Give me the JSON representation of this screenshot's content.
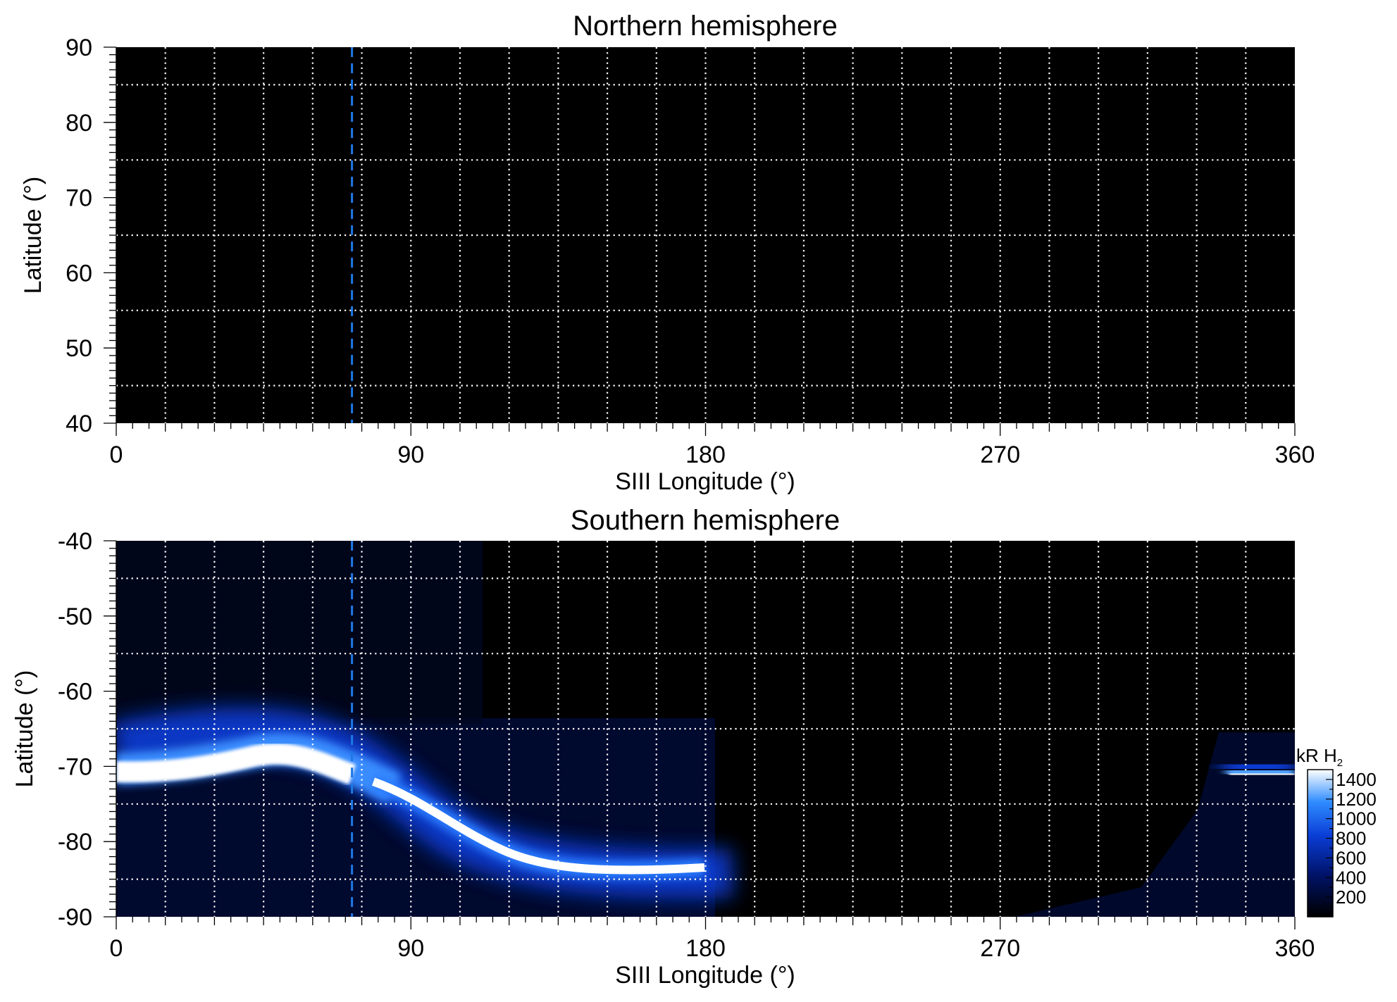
{
  "chart_data": [
    {
      "type": "heatmap",
      "title": "Northern hemisphere",
      "xlabel": "SIII Longitude (°)",
      "ylabel": "Latitude (°)",
      "xlim": [
        0,
        360
      ],
      "ylim": [
        40,
        90
      ],
      "xticks": [
        0,
        90,
        180,
        270,
        360
      ],
      "xtick_labels": [
        "0",
        "90",
        "180",
        "270",
        "360"
      ],
      "yticks": [
        40,
        50,
        60,
        70,
        80,
        90
      ],
      "ytick_labels": [
        "40",
        "50",
        "60",
        "70",
        "80",
        "90"
      ],
      "grid": true,
      "grid_x_step": 15,
      "grid_y_step": 10,
      "reference_longitude": 72,
      "colors": {
        "background": "#000000",
        "grid": "#ffffff",
        "reference_line": "#1e78e6"
      }
    },
    {
      "type": "heatmap",
      "title": "Southern hemisphere",
      "xlabel": "SIII Longitude (°)",
      "ylabel": "Latitude (°)",
      "xlim": [
        0,
        360
      ],
      "ylim": [
        -90,
        -40
      ],
      "xticks": [
        0,
        90,
        180,
        270,
        360
      ],
      "xtick_labels": [
        "0",
        "90",
        "180",
        "270",
        "360"
      ],
      "yticks": [
        -90,
        -80,
        -70,
        -60,
        -50,
        -40
      ],
      "ytick_labels": [
        "-90",
        "-80",
        "-70",
        "-60",
        "-50",
        "-40"
      ],
      "grid": true,
      "grid_x_step": 15,
      "grid_y_step": 10,
      "reference_longitude": 72,
      "colors": {
        "background": "#000000",
        "grid": "#ffffff",
        "reference_line": "#1e78e6"
      },
      "auroral_oval": {
        "center_latitude": [
          {
            "lon": 0,
            "lat": -72
          },
          {
            "lon": 20,
            "lat": -71.5
          },
          {
            "lon": 40,
            "lat": -70
          },
          {
            "lon": 55,
            "lat": -70.5
          },
          {
            "lon": 70,
            "lat": -71.5
          },
          {
            "lon": 80,
            "lat": -72.5
          },
          {
            "lon": 95,
            "lat": -74.5
          },
          {
            "lon": 110,
            "lat": -78
          },
          {
            "lon": 125,
            "lat": -81
          },
          {
            "lon": 140,
            "lat": -82.5
          },
          {
            "lon": 160,
            "lat": -83
          },
          {
            "lon": 175,
            "lat": -82.5
          },
          {
            "lon": 335,
            "lat": -71
          },
          {
            "lon": 345,
            "lat": -70.5
          },
          {
            "lon": 360,
            "lat": -71
          }
        ],
        "peak_brightness_kR": 1400
      },
      "colorbar": {
        "label_main": "kR H",
        "label_sub": "2",
        "range": [
          0,
          1500
        ],
        "ticks": [
          200,
          400,
          600,
          800,
          1000,
          1200,
          1400
        ],
        "tick_labels": [
          "200",
          "400",
          "600",
          "800",
          "1000",
          "1200",
          "1400"
        ],
        "colors": [
          "#000000",
          "#001266",
          "#0a3dd6",
          "#2f8cff",
          "#ffffff"
        ]
      }
    }
  ]
}
